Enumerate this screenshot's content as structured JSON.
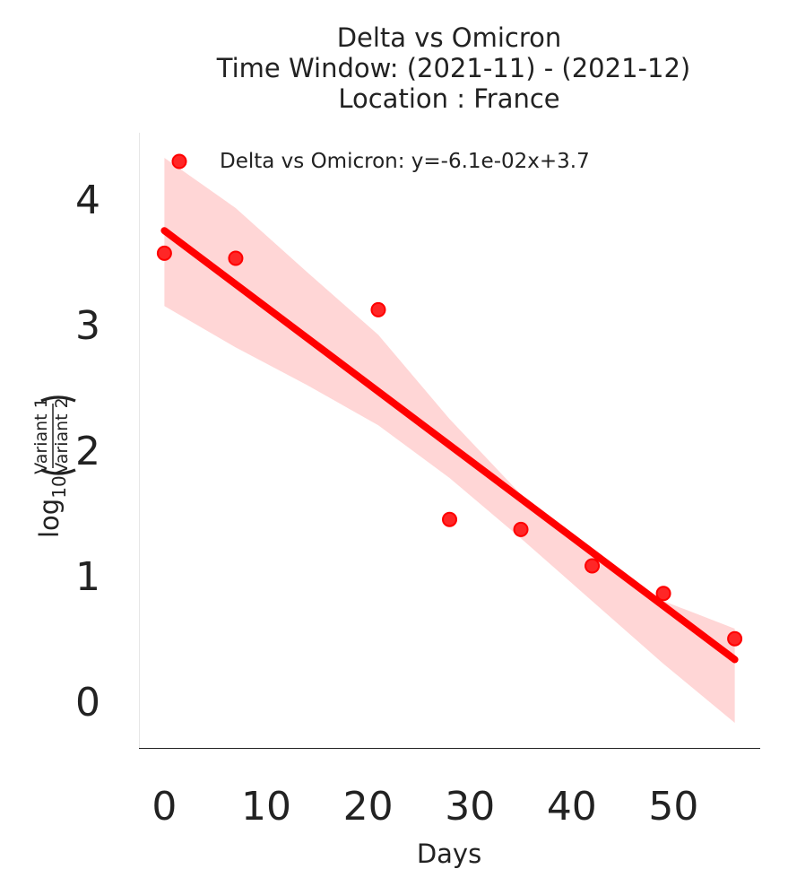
{
  "chart_data": {
    "type": "scatter",
    "title_lines": [
      "Delta vs Omicron",
      "Time Window: (2021-11) - (2021-12)",
      "Location : France"
    ],
    "xlabel": "Days",
    "ylabel": {
      "log_text": "log",
      "subscript": "10",
      "numerator": "Variant 1",
      "denominator": "Variant 2"
    },
    "xlim": [
      -2.5,
      58.5
    ],
    "ylim": [
      -0.37,
      4.53
    ],
    "xticks": [
      0,
      10,
      20,
      30,
      40,
      50
    ],
    "yticks": [
      0,
      1,
      2,
      3,
      4
    ],
    "color": "#ff0000",
    "band_color": "#ffd6d6",
    "series": [
      {
        "name": "Delta vs Omicron",
        "legend_label": "Delta vs Omicron: y=-6.1e-02x+3.7",
        "x": [
          0,
          7,
          21,
          28,
          35,
          42,
          49,
          56
        ],
        "y": [
          3.57,
          3.53,
          3.12,
          1.45,
          1.37,
          1.08,
          0.86,
          0.5
        ]
      }
    ],
    "regression": {
      "slope": -0.061,
      "intercept": 3.75,
      "x_range": [
        0,
        56
      ],
      "ci_lower": [
        [
          0,
          3.15
        ],
        [
          7,
          2.82
        ],
        [
          14,
          2.52
        ],
        [
          21,
          2.2
        ],
        [
          28,
          1.78
        ],
        [
          35,
          1.3
        ],
        [
          42,
          0.8
        ],
        [
          49,
          0.3
        ],
        [
          56,
          -0.17
        ]
      ],
      "ci_upper": [
        [
          0,
          4.33
        ],
        [
          7,
          3.93
        ],
        [
          14,
          3.42
        ],
        [
          21,
          2.92
        ],
        [
          28,
          2.25
        ],
        [
          35,
          1.65
        ],
        [
          42,
          1.18
        ],
        [
          49,
          0.8
        ],
        [
          56,
          0.58
        ]
      ]
    }
  }
}
